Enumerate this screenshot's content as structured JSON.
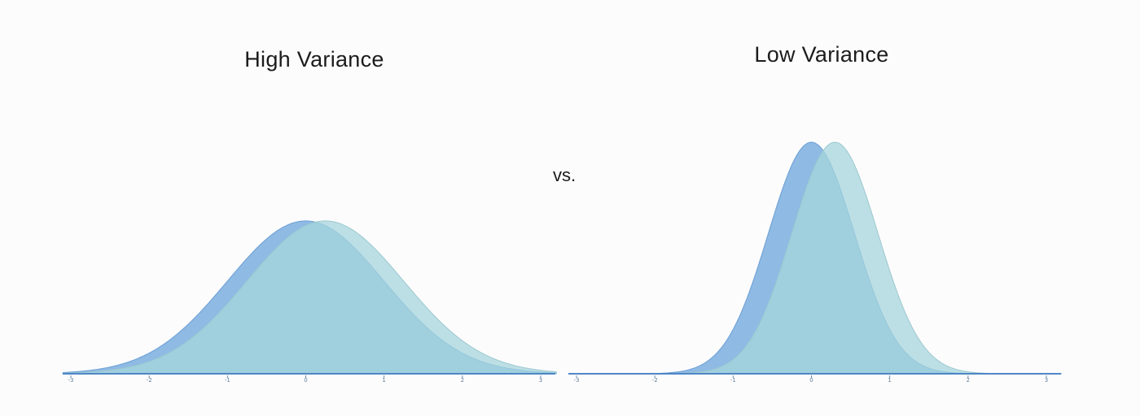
{
  "vs_label": "vs.",
  "chart_data": [
    {
      "type": "area",
      "title": "High Variance",
      "xlim": [
        -3,
        3
      ],
      "x_ticks": [
        -3,
        -2,
        -1,
        0,
        1,
        2,
        3
      ],
      "x_tick_labels": [
        "-3",
        "-2",
        "-1",
        "0",
        "1",
        "2",
        "3"
      ],
      "grid": false,
      "series": [
        {
          "mean": 0.0,
          "sd": 1.0,
          "peak": 0.66,
          "color": "#7fb0e0",
          "opacity": 0.88
        },
        {
          "mean": 0.25,
          "sd": 1.0,
          "peak": 0.66,
          "color": "#a6d6dc",
          "opacity": 0.75
        }
      ]
    },
    {
      "type": "area",
      "title": "Low Variance",
      "xlim": [
        -3,
        3
      ],
      "x_ticks": [
        -3,
        -2,
        -1,
        0,
        1,
        2,
        3
      ],
      "x_tick_labels": [
        "-3",
        "-2",
        "-1",
        "0",
        "1",
        "2",
        "3"
      ],
      "grid": false,
      "series": [
        {
          "mean": 0.0,
          "sd": 0.55,
          "peak": 1.0,
          "color": "#7fb0e0",
          "opacity": 0.88
        },
        {
          "mean": 0.3,
          "sd": 0.55,
          "peak": 1.0,
          "color": "#a6d6dc",
          "opacity": 0.75
        }
      ]
    }
  ]
}
